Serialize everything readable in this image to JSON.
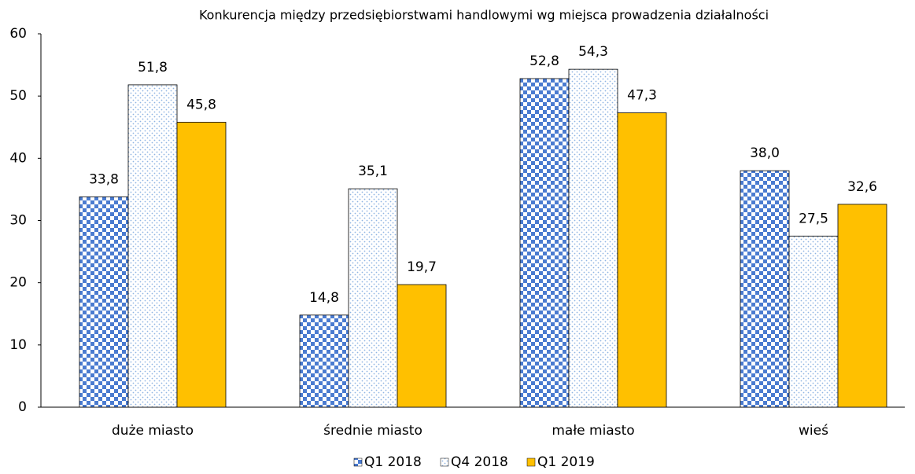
{
  "chart_data": {
    "type": "bar",
    "title": "Konkurencja między przedsiębiorstwami handlowymi wg miejsca prowadzenia działalności",
    "categories": [
      "duże miasto",
      "średnie miasto",
      "małe miasto",
      "wieś"
    ],
    "series": [
      {
        "name": "Q1 2018",
        "color": "#4a7bd0",
        "pattern": "checker",
        "values": [
          33.8,
          14.8,
          52.8,
          38.0
        ],
        "value_labels": [
          "33,8",
          "14,8",
          "52,8",
          "38,0"
        ]
      },
      {
        "name": "Q4 2018",
        "color": "#8fb4e3",
        "pattern": "dots",
        "values": [
          51.8,
          35.1,
          54.3,
          27.5
        ],
        "value_labels": [
          "51,8",
          "35,1",
          "54,3",
          "27,5"
        ]
      },
      {
        "name": "Q1 2019",
        "color": "#ffc000",
        "pattern": "solid",
        "values": [
          45.8,
          19.7,
          47.3,
          32.6
        ],
        "value_labels": [
          "45,8",
          "19,7",
          "47,3",
          "32,6"
        ]
      }
    ],
    "ylim": [
      0,
      60
    ],
    "yticks": [
      0,
      10,
      20,
      30,
      40,
      50,
      60
    ],
    "grid": false,
    "legend": "bottom"
  }
}
